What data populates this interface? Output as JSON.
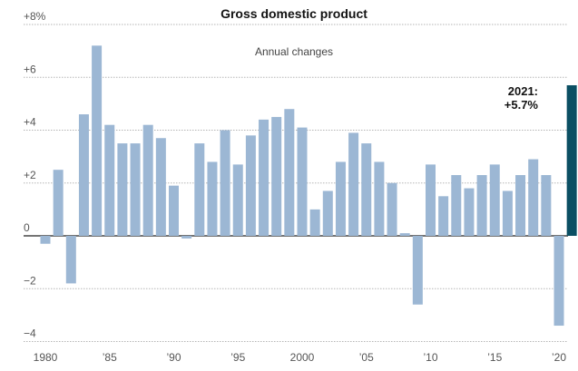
{
  "chart_data": {
    "type": "bar",
    "title": "Gross domestic product",
    "subtitle": "Annual changes",
    "x": [
      1980,
      1981,
      1982,
      1983,
      1984,
      1985,
      1986,
      1987,
      1988,
      1989,
      1990,
      1991,
      1992,
      1993,
      1994,
      1995,
      1996,
      1997,
      1998,
      1999,
      2000,
      2001,
      2002,
      2003,
      2004,
      2005,
      2006,
      2007,
      2008,
      2009,
      2010,
      2011,
      2012,
      2013,
      2014,
      2015,
      2016,
      2017,
      2018,
      2019,
      2020,
      2021
    ],
    "values": [
      -0.3,
      2.5,
      -1.8,
      4.6,
      7.2,
      4.2,
      3.5,
      3.5,
      4.2,
      3.7,
      1.9,
      -0.1,
      3.5,
      2.8,
      4.0,
      2.7,
      3.8,
      4.4,
      4.5,
      4.8,
      4.1,
      1.0,
      1.7,
      2.8,
      3.9,
      3.5,
      2.8,
      2.0,
      0.1,
      -2.6,
      2.7,
      1.5,
      2.3,
      1.8,
      2.3,
      2.7,
      1.7,
      2.3,
      2.9,
      2.3,
      -3.4,
      5.7
    ],
    "highlight_index": 41,
    "colors": {
      "bar": "#9cb7d4",
      "highlight": "#0b4f63"
    },
    "ylim": [
      -4,
      8
    ],
    "yticks": [
      {
        "value": 8,
        "label": "+8%"
      },
      {
        "value": 6,
        "label": "+6"
      },
      {
        "value": 4,
        "label": "+4"
      },
      {
        "value": 2,
        "label": "+2"
      },
      {
        "value": 0,
        "label": "0"
      },
      {
        "value": -2,
        "label": "−2"
      },
      {
        "value": -4,
        "label": "−4"
      }
    ],
    "xticks": [
      {
        "year": 1980,
        "label": "1980"
      },
      {
        "year": 1985,
        "label": "’85"
      },
      {
        "year": 1990,
        "label": "’90"
      },
      {
        "year": 1995,
        "label": "’95"
      },
      {
        "year": 2000,
        "label": "2000"
      },
      {
        "year": 2005,
        "label": "’05"
      },
      {
        "year": 2010,
        "label": "’10"
      },
      {
        "year": 2015,
        "label": "’15"
      },
      {
        "year": 2020,
        "label": "’20"
      }
    ],
    "annotation": {
      "line1": "2021:",
      "line2": "+5.7%"
    },
    "grid": true
  }
}
